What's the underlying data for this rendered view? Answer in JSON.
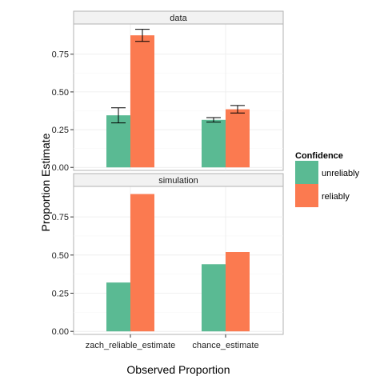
{
  "chart_data": {
    "type": "bar",
    "xlabel": "Observed Proportion",
    "ylabel": "Proportion Estimate",
    "categories": [
      "zach_reliable_estimate",
      "chance_estimate"
    ],
    "legend": {
      "title": "Confidence",
      "placement": "right",
      "entries": [
        {
          "label": "unreliably",
          "color": "#5aba93"
        },
        {
          "label": "reliably",
          "color": "#fb7a50"
        }
      ]
    },
    "y_ticks": [
      "0.00",
      "0.25",
      "0.50",
      "0.75"
    ],
    "ylim": [
      -0.02,
      0.95
    ],
    "grid": true,
    "facets": [
      {
        "label": "data",
        "series": [
          {
            "name": "unreliably",
            "values": [
              0.345,
              0.315
            ],
            "error_low": [
              0.295,
              0.3
            ],
            "error_high": [
              0.395,
              0.33
            ]
          },
          {
            "name": "reliably",
            "values": [
              0.875,
              0.385
            ],
            "error_low": [
              0.835,
              0.36
            ],
            "error_high": [
              0.915,
              0.41
            ]
          }
        ]
      },
      {
        "label": "simulation",
        "series": [
          {
            "name": "unreliably",
            "values": [
              0.32,
              0.44
            ]
          },
          {
            "name": "reliably",
            "values": [
              0.9,
              0.52
            ]
          }
        ]
      }
    ]
  }
}
